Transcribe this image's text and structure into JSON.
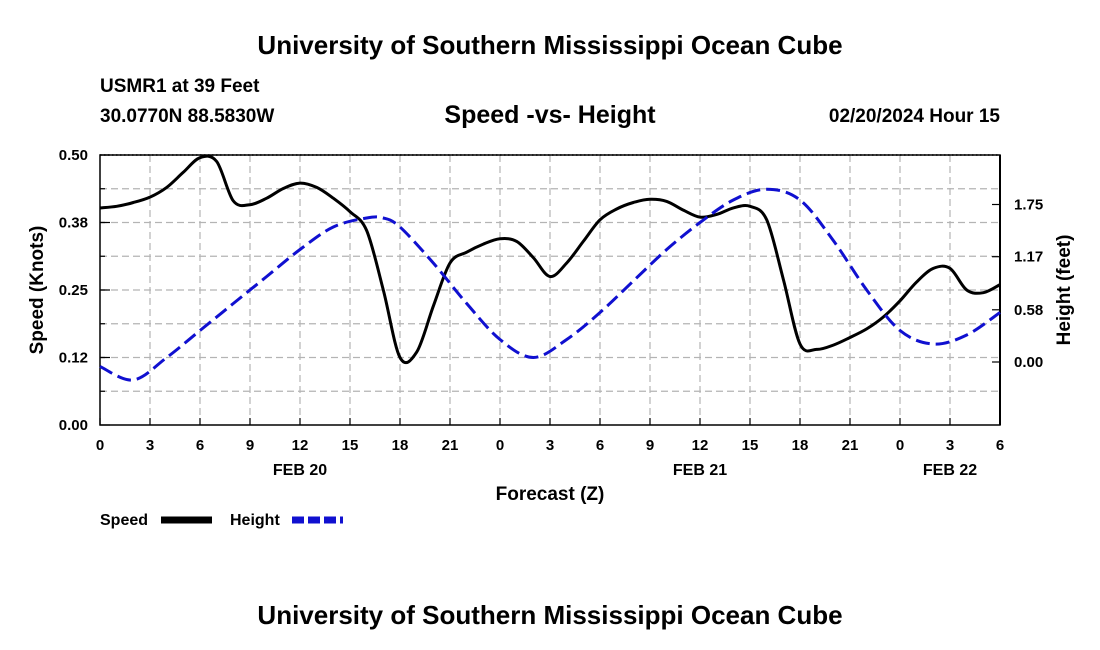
{
  "header": {
    "title": "University of Southern Mississippi Ocean Cube",
    "station": "USMR1 at 39 Feet",
    "coordinates": "30.0770N  88.5830W",
    "subtitle": "Speed -vs- Height",
    "datetime": "02/20/2024 Hour 15"
  },
  "footer": {
    "title": "University of Southern Mississippi Ocean Cube"
  },
  "colors": {
    "speed": "#000000",
    "height": "#1010d0",
    "grid": "#b4b4b4"
  },
  "chart_data": {
    "type": "line",
    "title": "Speed -vs- Height",
    "xlabel": "Forecast (Z)",
    "ylabel": "Speed (Knots)",
    "y2label": "Height (feet)",
    "x_range": [
      0,
      54
    ],
    "x_ticks": [
      {
        "h": 0,
        "label": "0"
      },
      {
        "h": 3,
        "label": "3"
      },
      {
        "h": 6,
        "label": "6"
      },
      {
        "h": 9,
        "label": "9"
      },
      {
        "h": 12,
        "label": "12"
      },
      {
        "h": 15,
        "label": "15"
      },
      {
        "h": 18,
        "label": "18"
      },
      {
        "h": 21,
        "label": "21"
      },
      {
        "h": 24,
        "label": "0"
      },
      {
        "h": 27,
        "label": "3"
      },
      {
        "h": 30,
        "label": "6"
      },
      {
        "h": 33,
        "label": "9"
      },
      {
        "h": 36,
        "label": "12"
      },
      {
        "h": 39,
        "label": "15"
      },
      {
        "h": 42,
        "label": "18"
      },
      {
        "h": 45,
        "label": "21"
      },
      {
        "h": 48,
        "label": "0"
      },
      {
        "h": 51,
        "label": "3"
      },
      {
        "h": 54,
        "label": "6"
      }
    ],
    "date_labels": [
      {
        "h": 12,
        "label": "FEB 20"
      },
      {
        "h": 36,
        "label": "FEB 21"
      },
      {
        "h": 51,
        "label": "FEB 22"
      }
    ],
    "y_range": [
      0,
      0.5
    ],
    "y_ticks": [
      {
        "v": 0.0,
        "label": "0.00"
      },
      {
        "v": 0.125,
        "label": "0.12"
      },
      {
        "v": 0.25,
        "label": "0.25"
      },
      {
        "v": 0.375,
        "label": "0.38"
      },
      {
        "v": 0.5,
        "label": "0.50"
      }
    ],
    "y2_range": [
      -0.7,
      2.3
    ],
    "y2_ticks": [
      {
        "v": 0.0,
        "label": "0.00"
      },
      {
        "v": 0.58,
        "label": "0.58"
      },
      {
        "v": 1.17,
        "label": "1.17"
      },
      {
        "v": 1.75,
        "label": "1.75"
      }
    ],
    "series": [
      {
        "name": "Speed",
        "axis": "left",
        "style": "solid",
        "x": [
          0,
          1,
          2,
          3,
          4,
          5,
          6,
          7,
          8,
          9,
          10,
          11,
          12,
          13,
          14,
          15,
          16,
          17,
          18,
          19,
          20,
          21,
          22,
          23,
          24,
          25,
          26,
          27,
          28,
          29,
          30,
          31,
          32,
          33,
          34,
          35,
          36,
          37,
          38,
          39,
          40,
          41,
          42,
          43,
          44,
          45,
          46,
          47,
          48,
          49,
          50,
          51,
          52,
          53,
          54
        ],
        "values": [
          0.402,
          0.405,
          0.412,
          0.422,
          0.44,
          0.468,
          0.495,
          0.488,
          0.415,
          0.408,
          0.42,
          0.438,
          0.448,
          0.44,
          0.42,
          0.395,
          0.36,
          0.25,
          0.125,
          0.135,
          0.22,
          0.3,
          0.32,
          0.335,
          0.345,
          0.34,
          0.31,
          0.275,
          0.3,
          0.34,
          0.38,
          0.4,
          0.412,
          0.418,
          0.414,
          0.398,
          0.385,
          0.39,
          0.402,
          0.405,
          0.38,
          0.27,
          0.15,
          0.14,
          0.148,
          0.162,
          0.178,
          0.2,
          0.23,
          0.265,
          0.29,
          0.29,
          0.25,
          0.245,
          0.26
        ]
      },
      {
        "name": "Height",
        "axis": "right",
        "style": "dashed",
        "x": [
          0,
          2,
          4,
          6,
          8,
          10,
          12,
          14,
          16,
          17,
          18,
          20,
          22,
          24,
          26,
          28,
          30,
          32,
          34,
          36,
          38,
          40,
          42,
          44,
          46,
          48,
          50,
          52,
          54
        ],
        "values": [
          -0.05,
          -0.2,
          0.05,
          0.35,
          0.65,
          0.95,
          1.25,
          1.5,
          1.6,
          1.6,
          1.5,
          1.1,
          0.65,
          0.25,
          0.05,
          0.25,
          0.55,
          0.9,
          1.25,
          1.55,
          1.8,
          1.92,
          1.8,
          1.35,
          0.8,
          0.35,
          0.2,
          0.3,
          0.55
        ]
      }
    ],
    "legend": [
      {
        "name": "Speed",
        "style": "solid"
      },
      {
        "name": "Height",
        "style": "dashed"
      }
    ],
    "legend_position": "bottom-left",
    "grid": true
  }
}
